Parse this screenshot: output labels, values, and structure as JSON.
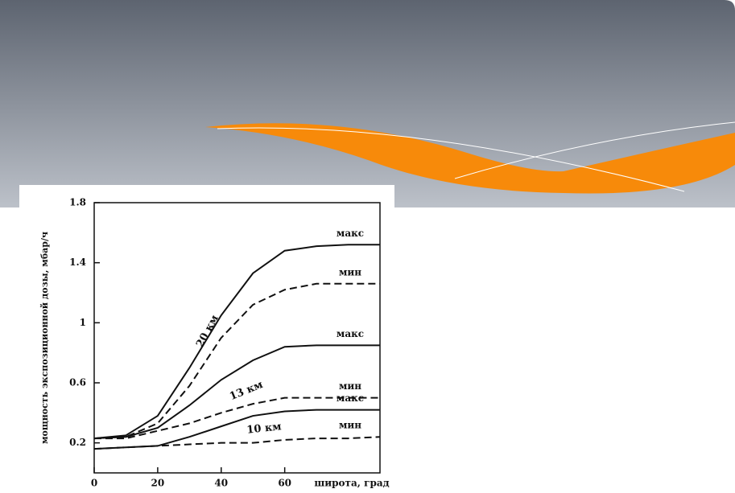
{
  "chart_data": {
    "type": "line",
    "ylabel": "мощность экспозиционной дозы, мбар/ч",
    "xlabel": "широта, град",
    "xlim": [
      0,
      90
    ],
    "xticks": [
      0,
      20,
      40,
      60
    ],
    "ylim": [
      0,
      1.8
    ],
    "yticks": [
      0.2,
      0.6,
      1.0,
      1.4,
      1.8
    ],
    "x": [
      0,
      10,
      20,
      30,
      40,
      50,
      60,
      70,
      80,
      90
    ],
    "color": "#111111",
    "series": [
      {
        "label": "макс",
        "style": "solid",
        "values": [
          0.23,
          0.25,
          0.38,
          0.7,
          1.05,
          1.33,
          1.48,
          1.51,
          1.52,
          1.52
        ]
      },
      {
        "label": "мин",
        "style": "dashed",
        "values": [
          0.23,
          0.24,
          0.33,
          0.58,
          0.9,
          1.12,
          1.22,
          1.26,
          1.26,
          1.26
        ]
      },
      {
        "label": "макс",
        "style": "solid",
        "values": [
          0.23,
          0.24,
          0.3,
          0.45,
          0.62,
          0.75,
          0.84,
          0.85,
          0.85,
          0.85
        ]
      },
      {
        "label": "мин",
        "style": "dashed",
        "values": [
          0.23,
          0.23,
          0.28,
          0.33,
          0.4,
          0.46,
          0.5,
          0.5,
          0.5,
          0.5
        ]
      },
      {
        "label": "макс",
        "style": "solid",
        "values": [
          0.16,
          0.17,
          0.18,
          0.24,
          0.31,
          0.38,
          0.41,
          0.42,
          0.42,
          0.42
        ]
      },
      {
        "label": "мин",
        "style": "dashed",
        "values": [
          0.16,
          0.17,
          0.18,
          0.19,
          0.2,
          0.2,
          0.22,
          0.23,
          0.23,
          0.24
        ]
      }
    ],
    "altitude_labels": [
      "20 км",
      "13 км",
      "10 км"
    ]
  }
}
